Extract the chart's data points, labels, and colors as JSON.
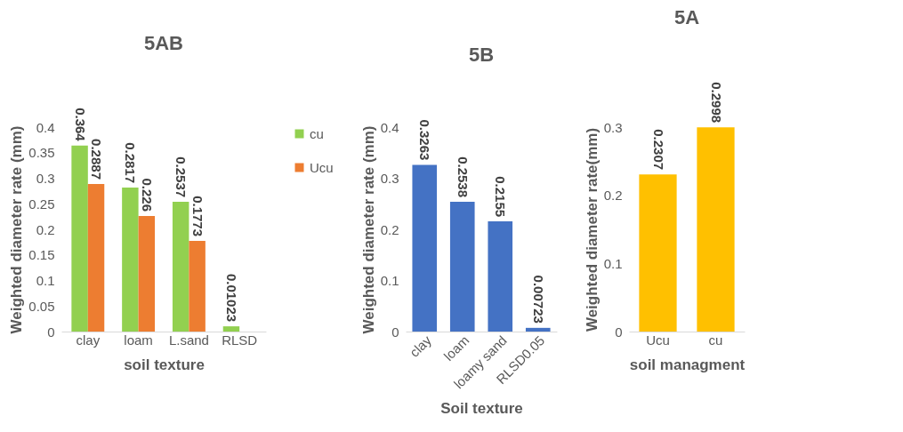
{
  "chart_data": [
    {
      "type": "bar",
      "title": "5AB",
      "xlabel": "soil texture",
      "ylabel": "Weighted diameter rate (mm)",
      "categories": [
        "clay",
        "loam",
        "L.sand",
        "RLSD"
      ],
      "series": [
        {
          "name": "cu",
          "color": "#92d050",
          "values": [
            0.364,
            0.2817,
            0.2537,
            0.01023
          ]
        },
        {
          "name": "Ucu",
          "color": "#ed7d31",
          "values": [
            0.2887,
            0.226,
            0.1773,
            null
          ]
        }
      ],
      "ylim": [
        0,
        0.4
      ],
      "yticks": [
        {
          "value": 0,
          "label": "0"
        },
        0.05,
        0.1,
        0.15,
        0.2,
        0.25,
        0.3,
        0.35,
        0.4
      ],
      "data_labels": true,
      "legend": "right"
    },
    {
      "type": "bar",
      "title": "5B",
      "xlabel": "Soil texture",
      "ylabel": "Weighted diameter rate (mm)",
      "categories": [
        "clay",
        "loam",
        "loamy sand",
        "RLSD0.05"
      ],
      "values": [
        0.3263,
        0.2538,
        0.2155,
        0.00723
      ],
      "color": "#4472c4",
      "ylim": [
        0,
        0.4
      ],
      "yticks": [
        0,
        0.1,
        0.2,
        0.3,
        0.4
      ],
      "data_labels": true
    },
    {
      "type": "bar",
      "title": "5A",
      "xlabel": "soil managment",
      "ylabel": "Weighted diameter rate(mm)",
      "categories": [
        "Ucu",
        "cu"
      ],
      "values": [
        0.2307,
        0.2998
      ],
      "color": "#ffc000",
      "ylim": [
        0,
        0.3
      ],
      "yticks": [
        0,
        0.1,
        0.2,
        0.3
      ],
      "data_labels": true
    }
  ]
}
